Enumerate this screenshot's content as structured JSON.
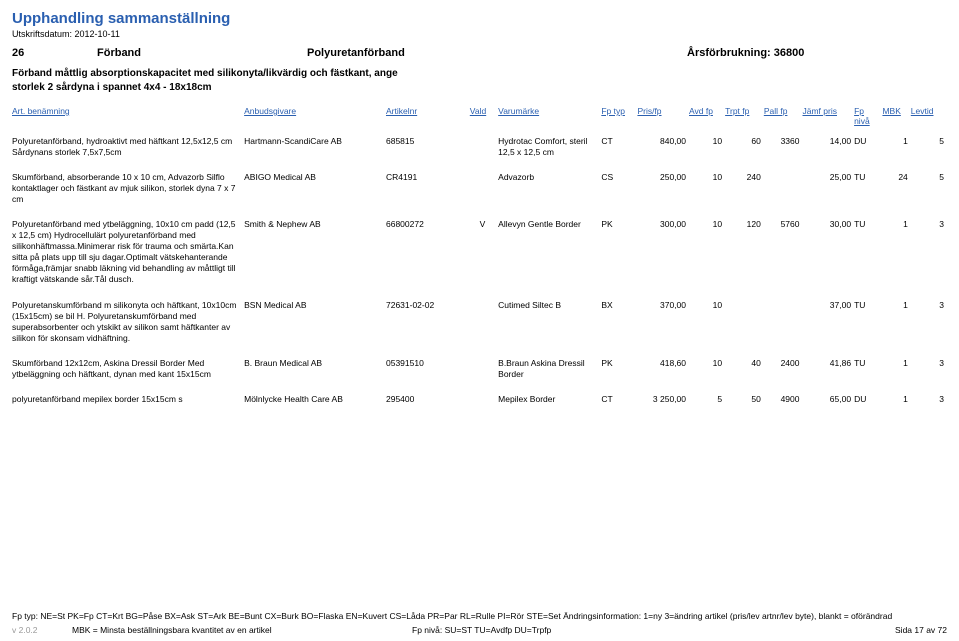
{
  "title": "Upphandling sammanställning",
  "print_date_label": "Utskriftsdatum: 2012-10-11",
  "header": {
    "number": "26",
    "forband_label": "Förband",
    "category": "Polyuretanförband",
    "annual": "Årsförbrukning: 36800"
  },
  "description": "Förband måttlig absorptionskapacitet med silikonyta/likvärdig och fästkant, ange storlek 2 sårdyna i spannet 4x4 - 18x18cm",
  "columns": {
    "art": "Art. benämning",
    "bidder": "Anbudsgivare",
    "artnr": "Artikelnr",
    "vald": "Vald",
    "brand": "Varumärke",
    "fptyp": "Fp typ",
    "pris": "Pris/fp",
    "avd": "Avd fp",
    "trpt": "Trpt fp",
    "pall": "Pall fp",
    "jamf": "Jämf pris",
    "fpniva": "Fp nivå",
    "mbk": "MBK",
    "levtid": "Levtid"
  },
  "rows": [
    {
      "art": "Polyuretanförband, hydroaktivt med häftkant 12,5x12,5 cm\nSårdynans storlek 7,5x7,5cm",
      "bidder": "Hartmann-ScandiCare AB",
      "artnr": "685815",
      "vald": "",
      "brand": "Hydrotac Comfort, steril 12,5 x 12,5 cm",
      "fptyp": "CT",
      "pris": "840,00",
      "avd": "10",
      "trpt": "60",
      "pall": "3360",
      "jamf": "14,00",
      "fpniva": "DU",
      "mbk": "1",
      "levtid": "5"
    },
    {
      "art": "Skumförband, absorberande 10 x 10 cm, Advazorb Silflo\nkontaktlager och fästkant av mjuk silikon, storlek dyna 7 x 7 cm",
      "bidder": "ABIGO Medical AB",
      "artnr": "CR4191",
      "vald": "",
      "brand": "Advazorb",
      "fptyp": "CS",
      "pris": "250,00",
      "avd": "10",
      "trpt": "240",
      "pall": "",
      "jamf": "25,00",
      "fpniva": "TU",
      "mbk": "24",
      "levtid": "5"
    },
    {
      "art": "Polyuretanförband med ytbeläggning, 10x10 cm padd (12,5 x 12,5 cm) Hydrocellulärt polyuretanförband med silikonhäftmassa.Minimerar risk för trauma och smärta.Kan sitta på plats upp till sju dagar.Optimalt vätskehanterande förmåga,främjar snabb läkning vid behandling av måttligt till kraftigt vätskande sår.Tål dusch.",
      "bidder": "Smith & Nephew AB",
      "artnr": "66800272",
      "vald": "V",
      "brand": "Allevyn Gentle Border",
      "fptyp": "PK",
      "pris": "300,00",
      "avd": "10",
      "trpt": "120",
      "pall": "5760",
      "jamf": "30,00",
      "fpniva": "TU",
      "mbk": "1",
      "levtid": "3"
    },
    {
      "art": "Polyuretanskumförband m silikonyta och häftkant, 10x10cm (15x15cm)\nse bil H. Polyuretanskumförband med superabsorbenter och ytskikt av silikon samt häftkanter av silikon för skonsam vidhäftning.",
      "bidder": "BSN Medical AB",
      "artnr": "72631-02-02",
      "vald": "",
      "brand": "Cutimed Siltec B",
      "fptyp": "BX",
      "pris": "370,00",
      "avd": "10",
      "trpt": "",
      "pall": "",
      "jamf": "37,00",
      "fpniva": "TU",
      "mbk": "1",
      "levtid": "3"
    },
    {
      "art": "Skumförband 12x12cm, Askina Dressil Border\nMed ytbeläggning och häftkant, dynan med kant 15x15cm",
      "bidder": "B. Braun Medical AB",
      "artnr": "05391510",
      "vald": "",
      "brand": "B.Braun Askina Dressil Border",
      "fptyp": "PK",
      "pris": "418,60",
      "avd": "10",
      "trpt": "40",
      "pall": "2400",
      "jamf": "41,86",
      "fpniva": "TU",
      "mbk": "1",
      "levtid": "3"
    },
    {
      "art": "polyuretanförband mepilex border 15x15cm\ns",
      "bidder": "Mölnlycke Health Care AB",
      "artnr": "295400",
      "vald": "",
      "brand": "Mepilex Border",
      "fptyp": "CT",
      "pris": "3 250,00",
      "avd": "5",
      "trpt": "50",
      "pall": "4900",
      "jamf": "65,00",
      "fpniva": "DU",
      "mbk": "1",
      "levtid": "3"
    }
  ],
  "footer": {
    "line1": "Fp typ: NE=St PK=Fp CT=Krt BG=Påse BX=Ask ST=Ark BE=Bunt CX=Burk BO=Flaska EN=Kuvert CS=Låda PR=Par RL=Rulle PI=Rör STE=Set Ändringsinformation: 1=ny 3=ändring artikel (pris/lev artnr/lev byte), blankt = oförändrad",
    "version": "v 2.0.2",
    "mbk": "MBK = Minsta beställningsbara kvantitet av en artikel",
    "fpniva": "Fp nivå: SU=ST TU=Avdfp DU=Trpfp",
    "page": "Sida 17 av 72"
  }
}
